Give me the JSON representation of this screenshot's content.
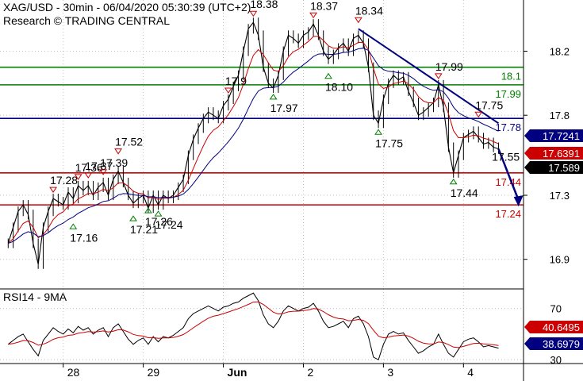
{
  "header": {
    "title": "XAG/USD - 30min - 06/04/2020 05:30:39 (UTC+2)",
    "subtitle": "Research © TRADING CENTRAL"
  },
  "rsi_title": "RSI14 - 9MA",
  "colors": {
    "price": "#000000",
    "ma_fast": "#cc0000",
    "ma_slow": "#000080",
    "support": "#cc0000",
    "resistance": "#008000",
    "pivot": "#000080",
    "trendline": "#000080",
    "rsi": "#000000",
    "rsi_ma": "#cc0000",
    "grid": "#c0c0c0"
  },
  "chart_data": [
    {
      "type": "line",
      "title": "XAG/USD - 30min",
      "x_labels": [
        "28",
        "29",
        "Jun",
        "2",
        "3",
        "4"
      ],
      "y_ticks": [
        18.2,
        17.8,
        17.3,
        16.9
      ],
      "ylim": [
        16.72,
        18.52
      ],
      "grid": true,
      "series": [
        {
          "role": "price",
          "values": [
            17.0,
            17.1,
            17.2,
            17.24,
            17.18,
            17.0,
            16.87,
            17.1,
            17.2,
            17.28,
            17.26,
            17.24,
            17.32,
            17.28,
            17.36,
            17.33,
            17.36,
            17.3,
            17.35,
            17.38,
            17.3,
            17.4,
            17.45,
            17.38,
            17.3,
            17.25,
            17.28,
            17.3,
            17.22,
            17.3,
            17.24,
            17.3,
            17.28,
            17.3,
            17.35,
            17.4,
            17.55,
            17.65,
            17.72,
            17.78,
            17.82,
            17.8,
            17.78,
            17.86,
            17.9,
            17.98,
            18.05,
            18.2,
            18.34,
            18.38,
            18.3,
            18.1,
            18.0,
            17.97,
            18.05,
            18.2,
            18.3,
            18.28,
            18.25,
            18.3,
            18.32,
            18.37,
            18.3,
            18.2,
            18.15,
            18.18,
            18.22,
            18.25,
            18.2,
            18.28,
            18.3,
            18.25,
            18.1,
            17.8,
            17.75,
            17.9,
            18.0,
            18.05,
            18.02,
            18.04,
            17.95,
            17.88,
            17.8,
            17.82,
            17.85,
            17.88,
            17.99,
            17.85,
            17.6,
            17.44,
            17.55,
            17.66,
            17.68,
            17.7,
            17.66,
            17.62,
            17.63,
            17.6,
            17.59
          ]
        },
        {
          "role": "ma_fast",
          "name": ""
        },
        {
          "role": "ma_slow",
          "name": ""
        }
      ],
      "horizontal_levels": [
        {
          "value": 18.1,
          "label": "18.1",
          "role": "resistance"
        },
        {
          "value": 17.99,
          "label": "17.99",
          "role": "resistance"
        },
        {
          "value": 17.78,
          "label": "17.78",
          "role": "pivot"
        },
        {
          "value": 17.44,
          "label": "17.44",
          "role": "support"
        },
        {
          "value": 17.24,
          "label": "17.24",
          "role": "support"
        }
      ],
      "price_tags": [
        {
          "value": "17.7241",
          "fill": "#000080",
          "text_color": "#ffffff"
        },
        {
          "value": "17.6391",
          "fill": "#cc0000",
          "text_color": "#ffffff"
        },
        {
          "value": "17.589",
          "fill": "#000000",
          "text_color": "#ffffff"
        }
      ],
      "annotations": [
        {
          "text": "17.28",
          "value": 17.28,
          "kind": "high",
          "i": 9
        },
        {
          "text": "17.36",
          "value": 17.36,
          "kind": "high",
          "i": 14
        },
        {
          "text": "17.37",
          "value": 17.37,
          "kind": "high",
          "i": 16
        },
        {
          "text": "17.39",
          "value": 17.39,
          "kind": "high",
          "i": 19
        },
        {
          "text": "17.52",
          "value": 17.52,
          "kind": "high",
          "i": 22
        },
        {
          "text": "17.16",
          "value": 17.16,
          "kind": "low",
          "i": 13
        },
        {
          "text": "17.21",
          "value": 17.21,
          "kind": "low",
          "i": 25
        },
        {
          "text": "17.26",
          "value": 17.26,
          "kind": "low",
          "i": 28
        },
        {
          "text": "17.24",
          "value": 17.24,
          "kind": "low",
          "i": 30
        },
        {
          "text": "17.9",
          "value": 17.9,
          "kind": "high",
          "i": 44
        },
        {
          "text": "18.38",
          "value": 18.38,
          "kind": "high",
          "i": 49
        },
        {
          "text": "17.97",
          "value": 17.97,
          "kind": "low",
          "i": 53
        },
        {
          "text": "18.37",
          "value": 18.37,
          "kind": "high",
          "i": 61
        },
        {
          "text": "18.10",
          "value": 18.1,
          "kind": "low",
          "i": 64
        },
        {
          "text": "18.34",
          "value": 18.34,
          "kind": "high",
          "i": 70
        },
        {
          "text": "17.75",
          "value": 17.75,
          "kind": "low",
          "i": 74
        },
        {
          "text": "17.99",
          "value": 17.99,
          "kind": "high",
          "i": 86
        },
        {
          "text": "17.44",
          "value": 17.44,
          "kind": "low",
          "i": 89
        },
        {
          "text": "17.75",
          "value": 17.75,
          "kind": "high",
          "i": 94
        },
        {
          "text": "17.55",
          "value": 17.55,
          "kind": "projection",
          "i": 97
        }
      ],
      "trendline": {
        "from": {
          "i": 70,
          "value": 18.34
        },
        "to": {
          "i": 98,
          "value": 17.75
        }
      },
      "forecast_arrow": {
        "from": {
          "i": 98,
          "value": 17.59
        },
        "to": {
          "i": 102,
          "value": 17.24
        }
      }
    },
    {
      "type": "line",
      "title": "RSI14 - 9MA",
      "y_ticks": [
        70,
        30
      ],
      "ylim": [
        27,
        84
      ],
      "series": [
        {
          "role": "rsi",
          "values": [
            42,
            45,
            48,
            50,
            44,
            38,
            33,
            45,
            50,
            55,
            52,
            50,
            54,
            51,
            56,
            53,
            55,
            50,
            53,
            55,
            48,
            55,
            58,
            52,
            46,
            42,
            45,
            47,
            42,
            48,
            44,
            48,
            47,
            49,
            52,
            55,
            62,
            66,
            68,
            70,
            72,
            70,
            68,
            71,
            72,
            74,
            75,
            78,
            80,
            82,
            76,
            65,
            58,
            55,
            60,
            68,
            72,
            70,
            68,
            70,
            71,
            74,
            68,
            60,
            55,
            56,
            58,
            60,
            55,
            62,
            64,
            58,
            48,
            32,
            30,
            42,
            50,
            52,
            50,
            51,
            45,
            40,
            35,
            37,
            40,
            42,
            50,
            42,
            35,
            32,
            38,
            44,
            46,
            47,
            44,
            40,
            41,
            40,
            39
          ]
        },
        {
          "role": "rsi_ma",
          "name": ""
        }
      ],
      "price_tags": [
        {
          "value": "40.6495",
          "fill": "#cc0000",
          "text_color": "#ffffff"
        },
        {
          "value": "38.6979",
          "fill": "#000080",
          "text_color": "#ffffff"
        }
      ]
    }
  ]
}
